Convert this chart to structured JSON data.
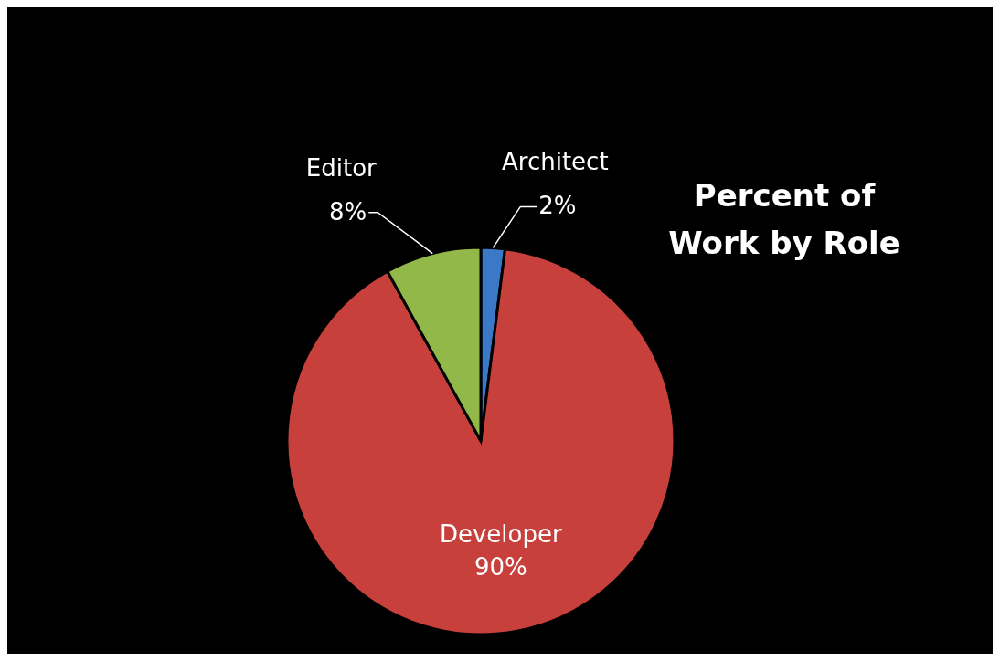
{
  "chart_data": {
    "type": "pie",
    "title": "Percent of Work by Role",
    "categories": [
      "Architect",
      "Developer",
      "Editor"
    ],
    "values": [
      2,
      90,
      8
    ],
    "value_labels": [
      "2%",
      "90%",
      "8%"
    ],
    "colors": [
      "#3a78c8",
      "#c8403c",
      "#92b84a"
    ],
    "legend": false
  }
}
